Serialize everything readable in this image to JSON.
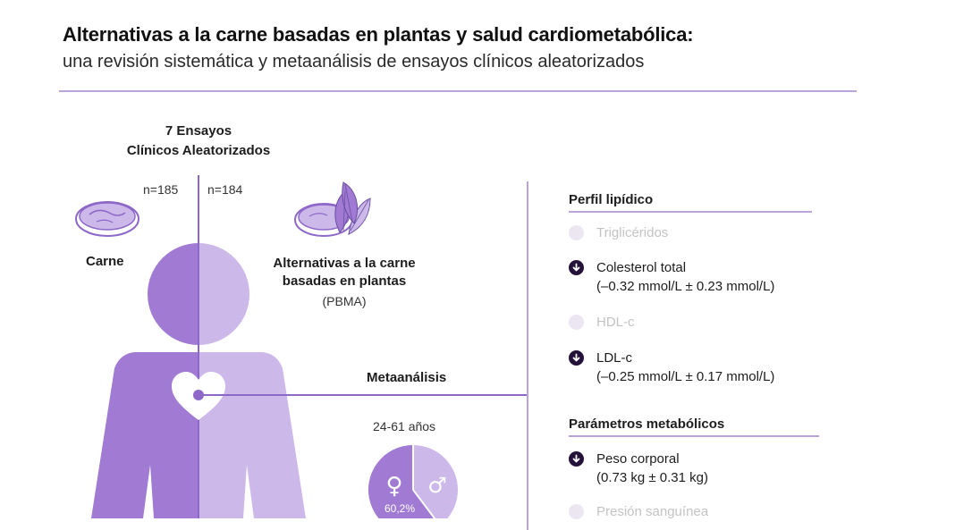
{
  "header": {
    "title": "Alternativas a la carne basadas en plantas y salud cardiometabólica:",
    "subtitle": "una revisión sistemática y metaanálisis de ensayos clínicos aleatorizados"
  },
  "study": {
    "trials_line1": "7 Ensayos",
    "trials_line2": "Clínicos Aleatorizados",
    "n_meat": "n=185",
    "n_pbma": "n=184",
    "meat_label": "Carne",
    "pbma_line1": "Alternativas a la carne",
    "pbma_line2": "basadas en plantas",
    "pbma_abbr": "(PBMA)",
    "meta_label": "Metaanálisis",
    "age_range": "24-61 años",
    "female_pct": "60,2%"
  },
  "lipid": {
    "title": "Perfil lipídico",
    "items": [
      {
        "name": "Triglicéridos",
        "effect": ""
      },
      {
        "name": "Colesterol total",
        "effect": "(–0.32 mmol/L ± 0.23 mmol/L)"
      },
      {
        "name": "HDL-c",
        "effect": ""
      },
      {
        "name": "LDL-c",
        "effect": "(–0.25 mmol/L ± 0.17 mmol/L)"
      }
    ]
  },
  "metabolic": {
    "title": "Parámetros metabólicos",
    "items": [
      {
        "name": "Peso corporal",
        "effect": "(0.73 kg ± 0.31 kg)"
      },
      {
        "name": "Presión sanguínea",
        "effect": ""
      }
    ]
  },
  "colors": {
    "meat_purple": "#a07ad3",
    "pbma_lavender": "#cdb8ea",
    "accent_line": "#b9a3d8",
    "down_icon": "#24123a",
    "faded_text": "#c3c3c3"
  }
}
